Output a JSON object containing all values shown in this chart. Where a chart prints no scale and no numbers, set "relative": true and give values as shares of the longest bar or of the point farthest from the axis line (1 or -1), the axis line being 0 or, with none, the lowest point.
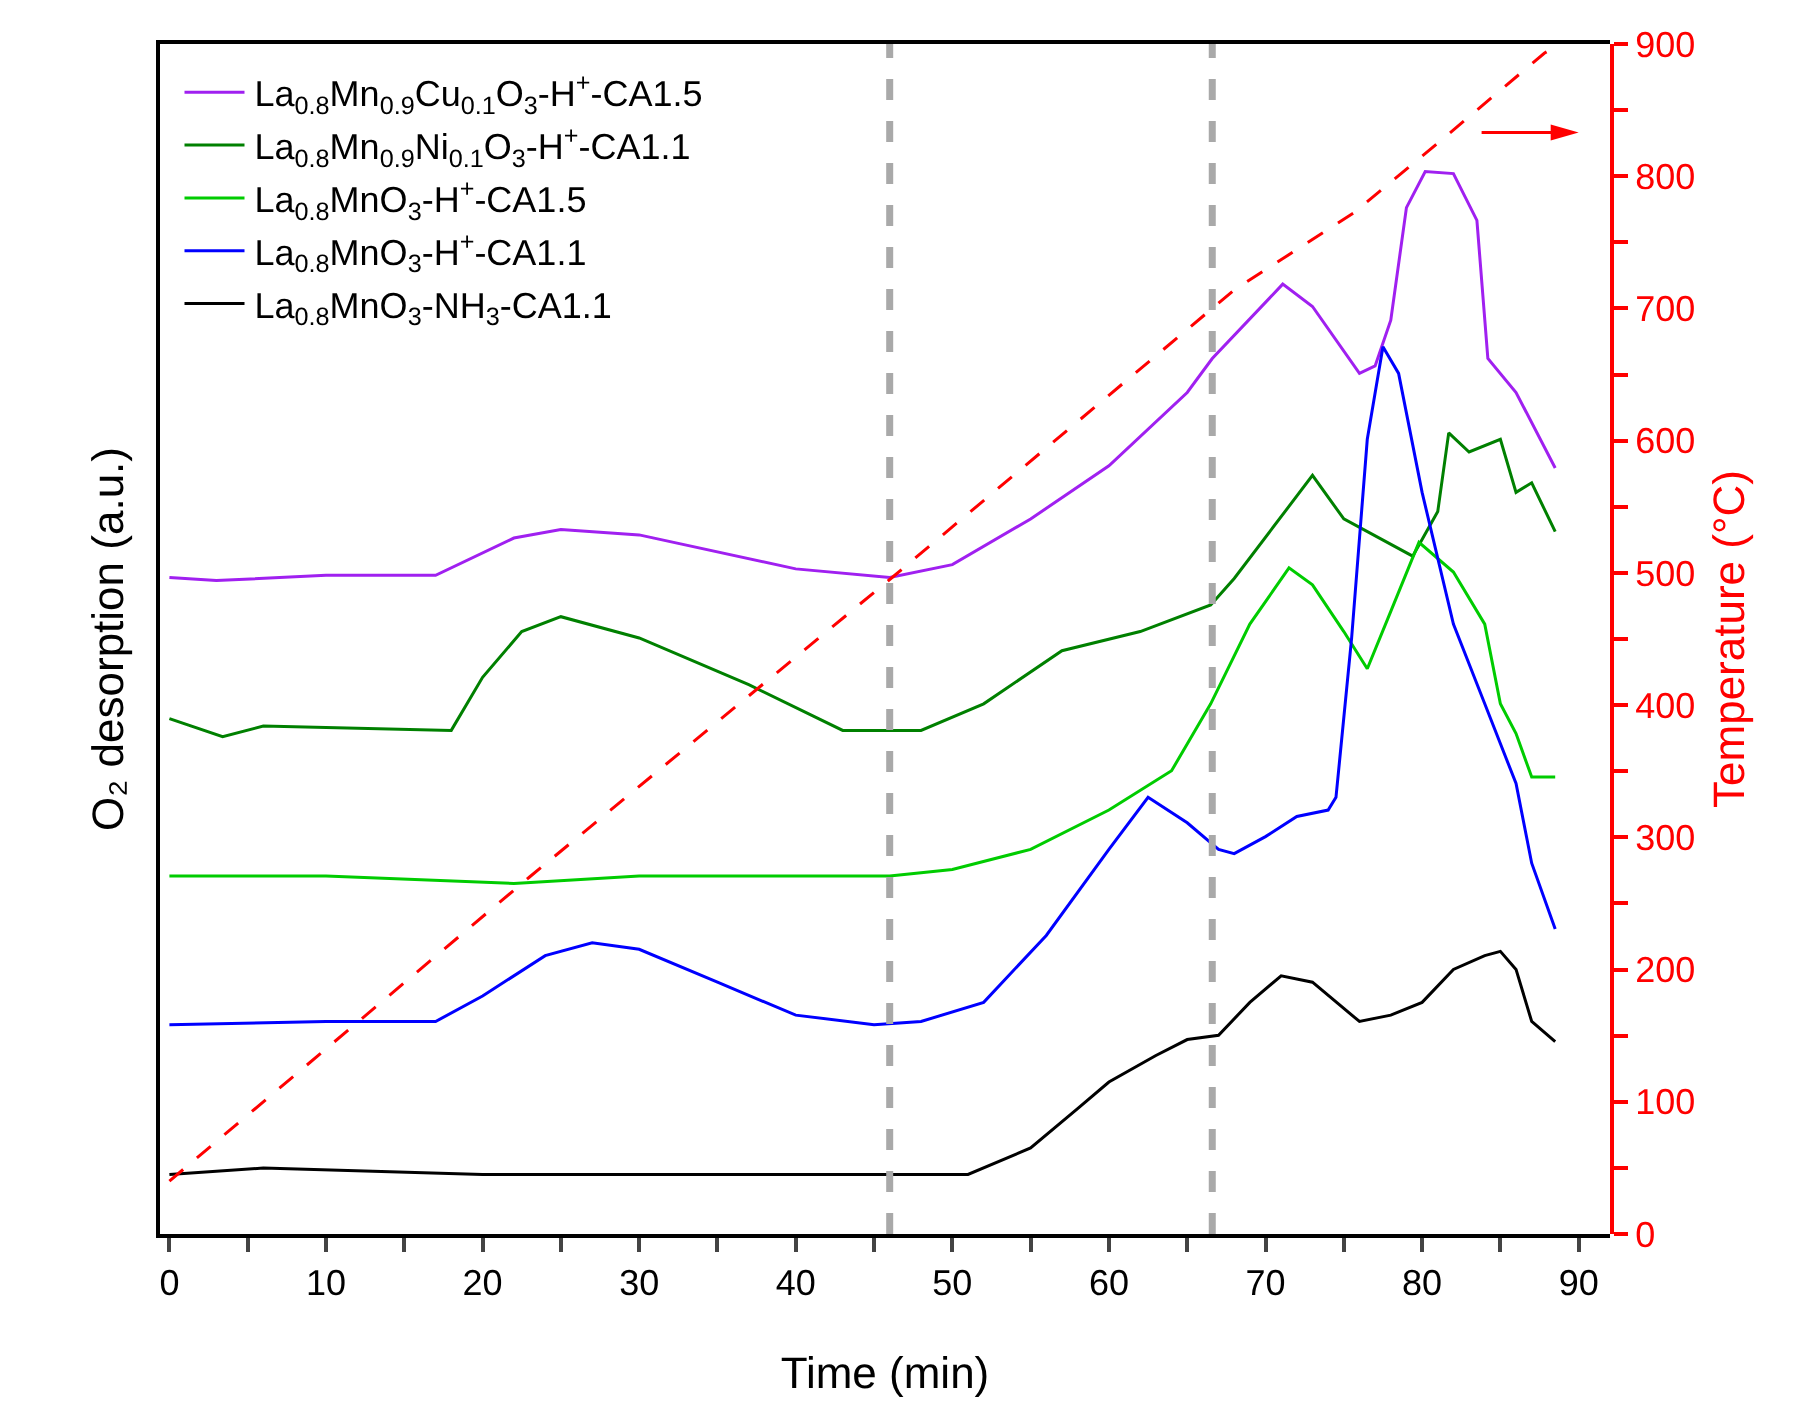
{
  "chart_data": [
    {
      "type": "line",
      "relative": true,
      "xlabel": "Time (min)",
      "ylabel": "O₂ desorption (a.u.)",
      "legend": "top left",
      "xlim": [
        -0.6,
        92
      ],
      "xticks": [
        0,
        {
          "value": 5,
          "label": null
        },
        10,
        {
          "value": 15,
          "label": null
        },
        20,
        {
          "value": 25,
          "label": null
        },
        30,
        {
          "value": 35,
          "label": null
        },
        40,
        {
          "value": 45,
          "label": null
        },
        50,
        {
          "value": 55,
          "label": null
        },
        60,
        {
          "value": 65,
          "label": null
        },
        70,
        {
          "value": 75,
          "label": null
        },
        80,
        {
          "value": 85,
          "label": null
        },
        90
      ],
      "series": [
        {
          "name": "La$_{0.8}$Mn$_{0.9}$Cu$_{0.1}$O$_{3}$-H$^{+}$-CA1.5",
          "color": "#a020f0",
          "x": [
            0,
            3,
            10,
            17,
            22,
            25,
            30,
            40,
            46,
            50,
            55,
            60,
            65,
            66.6,
            71.1,
            73,
            76,
            77,
            78,
            79,
            80.2,
            82,
            83.5,
            84.2,
            86,
            88.5
          ],
          "values": [
            0.618,
            0.615,
            0.62,
            0.62,
            0.655,
            0.663,
            0.658,
            0.626,
            0.618,
            0.63,
            0.673,
            0.723,
            0.792,
            0.824,
            0.894,
            0.873,
            0.81,
            0.817,
            0.86,
            0.966,
            1,
            0.998,
            0.954,
            0.824,
            0.792,
            0.721
          ]
        },
        {
          "name": "La$_{0.8}$Mn$_{0.9}$Ni$_{0.1}$O$_{3}$-H$^{+}$-CA1.1",
          "color": "#008000",
          "x": [
            0,
            3.4,
            6,
            18,
            20,
            22.5,
            25,
            30,
            37,
            43,
            48,
            52,
            57,
            62,
            66.5,
            68,
            73,
            75,
            79.4,
            81,
            81.7,
            83,
            85,
            86,
            87,
            88.5
          ],
          "values": [
            0.485,
            0.468,
            0.478,
            0.474,
            0.524,
            0.567,
            0.581,
            0.561,
            0.517,
            0.474,
            0.474,
            0.499,
            0.549,
            0.567,
            0.592,
            0.617,
            0.714,
            0.673,
            0.638,
            0.68,
            0.754,
            0.736,
            0.748,
            0.698,
            0.707,
            0.661
          ]
        },
        {
          "name": "La$_{0.8}$MnO$_{3}$-H$^{+}$-CA1.5",
          "color": "#00cc00",
          "x": [
            0,
            10,
            22,
            30,
            40,
            46,
            50,
            55,
            60,
            64,
            66.5,
            69,
            71.5,
            73,
            75,
            76.5,
            78,
            79.8,
            82,
            84,
            85,
            86,
            87,
            88.5
          ],
          "values": [
            0.337,
            0.337,
            0.33,
            0.337,
            0.337,
            0.337,
            0.343,
            0.362,
            0.399,
            0.436,
            0.499,
            0.574,
            0.627,
            0.611,
            0.567,
            0.532,
            0.586,
            0.651,
            0.623,
            0.574,
            0.499,
            0.471,
            0.43,
            0.43
          ]
        },
        {
          "name": "La$_{0.8}$MnO$_{3}$-H$^{+}$-CA1.1",
          "color": "#0000ff",
          "x": [
            0,
            10,
            17,
            20,
            24,
            27,
            30,
            35,
            40,
            45,
            48,
            52,
            56,
            60,
            62.5,
            65,
            67,
            68,
            70,
            72,
            74,
            74.5,
            75.5,
            76.5,
            77.5,
            78.5,
            80,
            82,
            84,
            86,
            87,
            88.5
          ],
          "values": [
            0.197,
            0.2,
            0.2,
            0.224,
            0.262,
            0.274,
            0.268,
            0.237,
            0.206,
            0.197,
            0.2,
            0.218,
            0.281,
            0.362,
            0.411,
            0.387,
            0.362,
            0.358,
            0.374,
            0.393,
            0.399,
            0.411,
            0.561,
            0.748,
            0.835,
            0.81,
            0.698,
            0.574,
            0.499,
            0.424,
            0.349,
            0.287
          ]
        },
        {
          "name": "La$_{0.8}$MnO$_{3}$-NH$_{3}$-CA1.1",
          "color": "#000000",
          "x": [
            0,
            6,
            20,
            40,
            51,
            55,
            58,
            60,
            63,
            65,
            67,
            69,
            71,
            73,
            76,
            78,
            80,
            82,
            84,
            85,
            86,
            87,
            88.5
          ],
          "values": [
            0.056,
            0.062,
            0.056,
            0.056,
            0.056,
            0.081,
            0.118,
            0.143,
            0.168,
            0.183,
            0.187,
            0.218,
            0.243,
            0.237,
            0.2,
            0.206,
            0.218,
            0.249,
            0.262,
            0.266,
            0.249,
            0.2,
            0.181
          ]
        }
      ],
      "ref_lines": [
        {
          "axis": "x",
          "value": 46,
          "color": "#a9a9a9",
          "line_style": "dashed"
        },
        {
          "axis": "x",
          "value": 66.6,
          "color": "#a9a9a9",
          "line_style": "dashed"
        }
      ]
    },
    {
      "type": "line",
      "ylabel": "Temperature (°C)",
      "tick_labels": "y",
      "line_style": "dashed",
      "xlim": [
        -0.6,
        92
      ],
      "ylim": [
        0,
        900
      ],
      "yticks": [
        0,
        {
          "value": 50,
          "label": null
        },
        100,
        {
          "value": 150,
          "label": null
        },
        200,
        {
          "value": 250,
          "label": null
        },
        300,
        {
          "value": 350,
          "label": null
        },
        400,
        {
          "value": 450,
          "label": null
        },
        500,
        {
          "value": 550,
          "label": null
        },
        600,
        {
          "value": 650,
          "label": null
        },
        700,
        {
          "value": 750,
          "label": null
        },
        800,
        {
          "value": 850,
          "label": null
        },
        900
      ],
      "series": [
        {
          "color": "#ff0000",
          "x": [
            0,
            23,
            46,
            66.6,
            68,
            75.6,
            81,
            87.8,
            88.8
          ],
          "values": [
            40,
            270,
            495,
            700,
            714,
            772,
            825,
            893,
            900
          ]
        }
      ]
    }
  ]
}
